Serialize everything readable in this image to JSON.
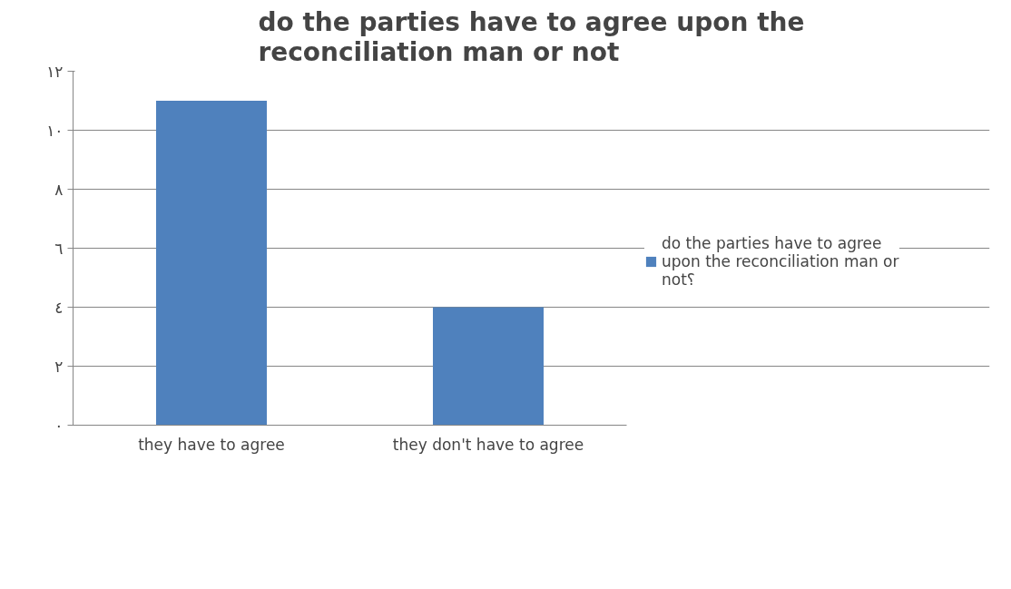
{
  "chart_data": {
    "type": "bar",
    "title": "do the parties have to agree upon the reconciliation man or not",
    "categories": [
      "they have to agree",
      "they don't have to agree"
    ],
    "series": [
      {
        "name": "do the parties have to agree upon the reconciliation man or not؟",
        "color": "#4f81bd",
        "values": [
          11,
          4
        ]
      }
    ],
    "ylim": [
      0,
      12
    ],
    "yticks": [
      {
        "value": 0,
        "label": "٠"
      },
      {
        "value": 2,
        "label": "٢"
      },
      {
        "value": 4,
        "label": "٤"
      },
      {
        "value": 6,
        "label": "٦"
      },
      {
        "value": 8,
        "label": "٨"
      },
      {
        "value": 10,
        "label": "١٠"
      },
      {
        "value": 12,
        "label": "١٢"
      }
    ],
    "grid": "y",
    "legend": "right"
  }
}
